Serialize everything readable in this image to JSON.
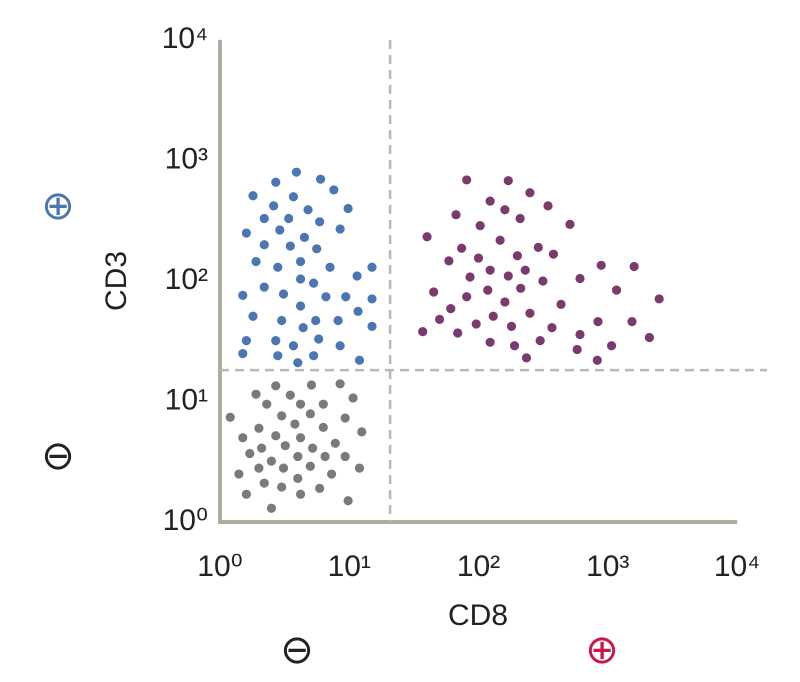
{
  "chart_data": {
    "type": "scatter",
    "xlabel": "CD8",
    "ylabel": "CD3",
    "log_x": true,
    "log_y": true,
    "xlim": [
      1,
      10000
    ],
    "ylim": [
      1,
      10000
    ],
    "xticks": [
      {
        "value": 1,
        "label": "10⁰"
      },
      {
        "value": 10,
        "label": "10¹"
      },
      {
        "value": 100,
        "label": "10²"
      },
      {
        "value": 1000,
        "label": "10³"
      },
      {
        "value": 10000,
        "label": "10⁴"
      }
    ],
    "yticks": [
      {
        "value": 1,
        "label": "10⁰"
      },
      {
        "value": 10,
        "label": "10¹"
      },
      {
        "value": 100,
        "label": "10²"
      },
      {
        "value": 1000,
        "label": "10³"
      },
      {
        "value": 10000,
        "label": "10⁴"
      }
    ],
    "gates": {
      "x": 20.7,
      "y": 18.2
    },
    "annotations": [
      {
        "text": "⊕",
        "color": "#4a77b1",
        "position": "y-high"
      },
      {
        "text": "⊖",
        "color": "#222222",
        "position": "y-low"
      },
      {
        "text": "⊖",
        "color": "#222222",
        "position": "x-low"
      },
      {
        "text": "⊕",
        "color": "#c8184a",
        "position": "x-high"
      }
    ],
    "series": [
      {
        "color": "#4a77b1",
        "x": [
          3.9,
          2.7,
          6.0,
          7.6,
          1.8,
          3.7,
          2.6,
          9.8,
          4.8,
          2.2,
          3.4,
          5.9,
          1.6,
          2.9,
          4.5,
          8.5,
          2.2,
          3.5,
          5.6,
          1.9,
          4.2,
          2.8,
          7.1,
          15,
          11.5,
          4.2,
          5.3,
          2.2,
          3.1,
          1.5,
          6.6,
          9.4,
          15,
          4.2,
          11.7,
          1.8,
          3.0,
          5.5,
          8.2,
          15,
          4.4,
          1.6,
          2.7,
          5.8,
          3.7,
          8.5,
          1.5,
          2.8,
          5.3,
          4.0,
          12
        ],
        "y": [
          800,
          660,
          700,
          570,
          510,
          500,
          420,
          400,
          390,
          330,
          330,
          310,
          250,
          265,
          230,
          270,
          200,
          195,
          185,
          145,
          145,
          130,
          130,
          130,
          110,
          104,
          96,
          89,
          78,
          76,
          74,
          74,
          71,
          62,
          56,
          51,
          47,
          47,
          47,
          42,
          41,
          32,
          32,
          33,
          29,
          29,
          25,
          24,
          24,
          21,
          22
        ]
      },
      {
        "color": "#7b3a6e",
        "x": [
          81,
          170,
          250,
          123,
          67,
          160,
          345,
          40,
          103,
          210,
          510,
          74,
          147,
          290,
          59,
          100,
          200,
          380,
          890,
          1600,
          123,
          230,
          86,
          170,
          610,
          315,
          45,
          118,
          212,
          1170,
          81,
          160,
          435,
          2500,
          61,
          130,
          250,
          50,
          96,
          840,
          1540,
          180,
          370,
          37,
          69,
          610,
          2100,
          123,
          190,
          300,
          1070,
          580,
          235,
          830
        ],
        "y": [
          690,
          680,
          540,
          460,
          355,
          390,
          420,
          233,
          288,
          330,
          295,
          187,
          218,
          190,
          147,
          155,
          162,
          167,
          135,
          132,
          123,
          123,
          108,
          110,
          105,
          100,
          81,
          84,
          87,
          84,
          74,
          67,
          64,
          71,
          59,
          51,
          54,
          48,
          44,
          46,
          46,
          42,
          41,
          38,
          37,
          36,
          34,
          31,
          29,
          32,
          29,
          27,
          23,
          22
        ]
      },
      {
        "color": "#7a7a7a",
        "x": [
          2.7,
          5.1,
          8.5,
          1.9,
          3.5,
          10.7,
          2.3,
          4.2,
          6.3,
          1.2,
          3.0,
          5.0,
          9.3,
          2.0,
          3.8,
          6.3,
          1.5,
          2.7,
          4.2,
          12.5,
          7.8,
          2.1,
          3.2,
          5.2,
          1.7,
          4.0,
          6.5,
          9.3,
          2.5,
          2.0,
          3.1,
          5.0,
          12,
          1.4,
          7.3,
          4.0,
          2.2,
          3.0,
          5.9,
          1.6,
          4.2,
          9.8,
          2.5
        ],
        "y": [
          13.5,
          13.7,
          14,
          11.5,
          11.3,
          10.7,
          9.5,
          9.5,
          9.5,
          7.4,
          7.6,
          7.9,
          7.3,
          6.0,
          6.5,
          6.1,
          5.0,
          5.2,
          5.0,
          5.6,
          4.5,
          4.1,
          4.3,
          4.1,
          3.7,
          3.5,
          3.5,
          3.5,
          3.2,
          2.8,
          2.8,
          2.9,
          2.8,
          2.5,
          2.5,
          2.3,
          2.1,
          1.95,
          1.9,
          1.7,
          1.7,
          1.5,
          1.3
        ]
      }
    ]
  }
}
